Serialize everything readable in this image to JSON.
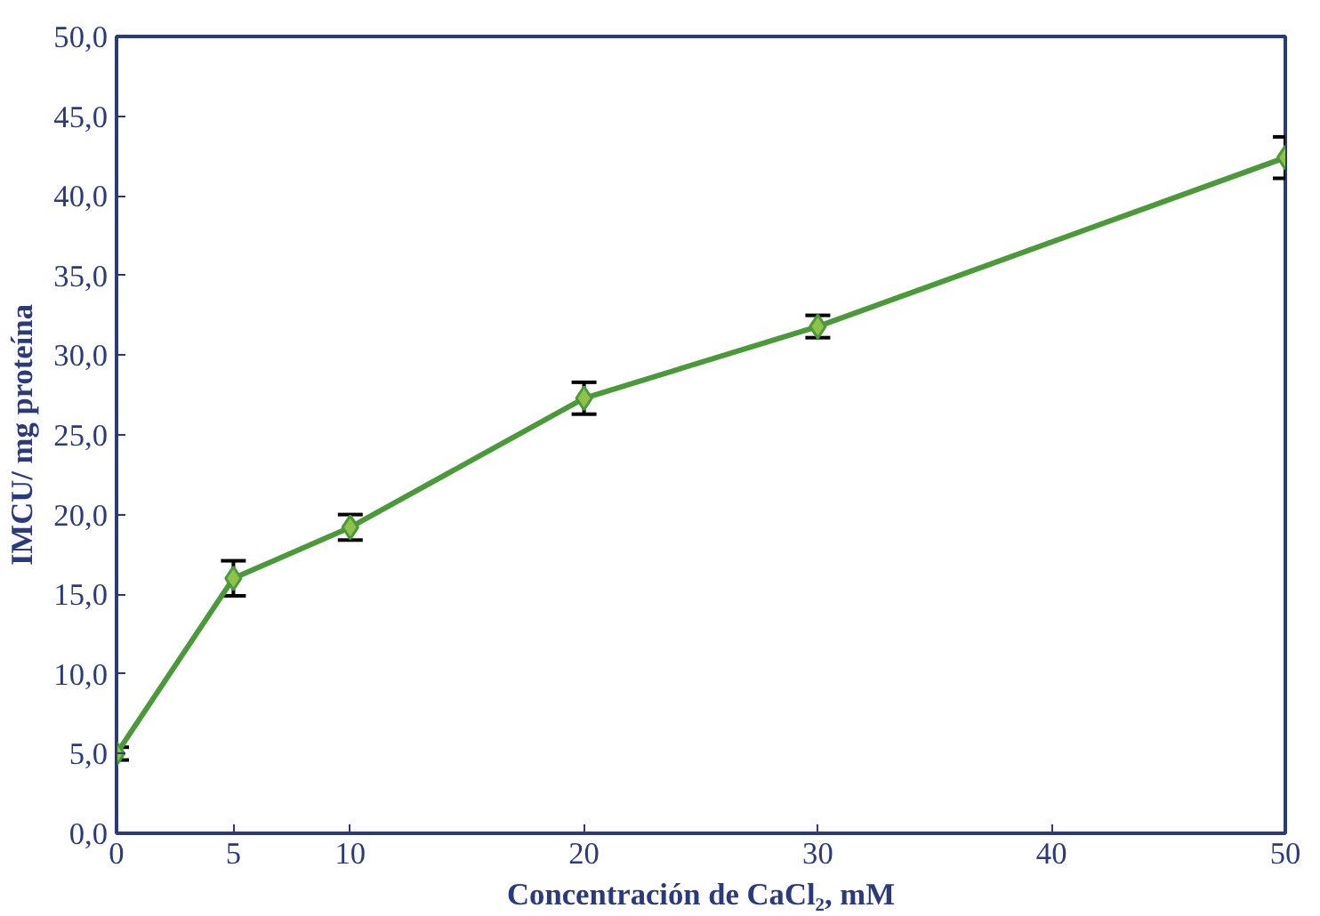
{
  "chart_data": {
    "type": "line",
    "xlabel": "Concentración de CaCl₂, mM",
    "ylabel": "IMCU/ mg proteína",
    "x": [
      0,
      5,
      10,
      20,
      30,
      50
    ],
    "series": [
      {
        "color": "#4a9a3a",
        "values": [
          5.0,
          16.0,
          19.2,
          27.3,
          31.8,
          42.4
        ],
        "errors": [
          0.4,
          1.1,
          0.8,
          1.0,
          0.7,
          1.3
        ]
      }
    ],
    "xlim": [
      0,
      50
    ],
    "xticks": [
      0,
      5,
      10,
      20,
      30,
      40,
      50
    ],
    "ylim": [
      0,
      50
    ],
    "yticks": [
      {
        "value": 0,
        "label": "0,0"
      },
      {
        "value": 5,
        "label": "5,0"
      },
      {
        "value": 10,
        "label": "10,0"
      },
      {
        "value": 15,
        "label": "15,0"
      },
      {
        "value": 20,
        "label": "20,0"
      },
      {
        "value": 25,
        "label": "25,0"
      },
      {
        "value": 30,
        "label": "30,0"
      },
      {
        "value": 35,
        "label": "35,0"
      },
      {
        "value": 40,
        "label": "40,0"
      },
      {
        "value": 45,
        "label": "45,0"
      },
      {
        "value": 50,
        "label": "50,0"
      }
    ],
    "grid": false,
    "marker": "diamond",
    "line_style": "solid"
  }
}
